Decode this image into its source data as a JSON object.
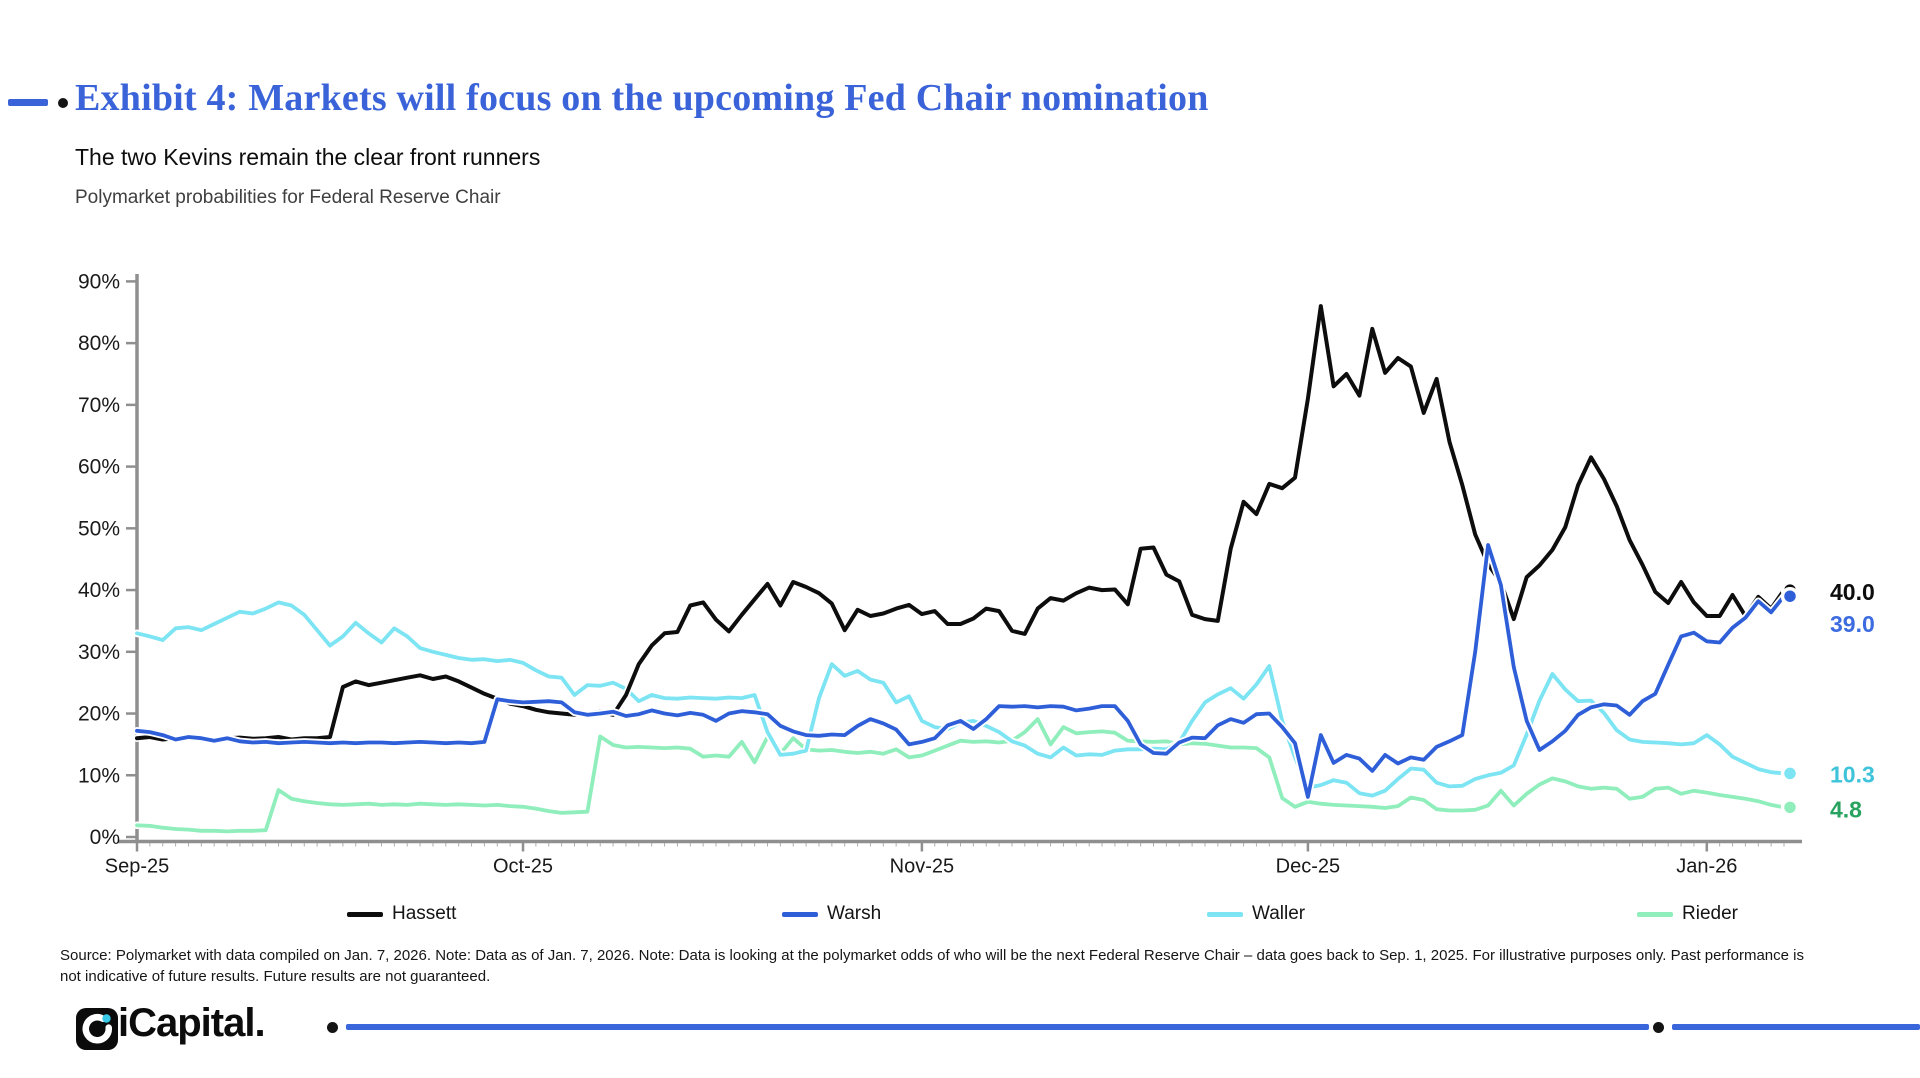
{
  "header": {
    "exhibit_title": "Exhibit 4: Markets will focus on the upcoming Fed Chair nomination",
    "subtitle": "The two Kevins remain the clear front runners",
    "chart_description": "Polymarket probabilities for Federal Reserve Chair",
    "accent_color": "#3a63d9"
  },
  "chart_data": {
    "type": "line",
    "title": "Polymarket probabilities for Federal Reserve Chair",
    "x_unit": "day",
    "x_range_note": "Sep 1, 2025 to Jan 7, 2026, daily",
    "x_tick_labels": [
      "Sep-25",
      "Oct-25",
      "Nov-25",
      "Dec-25",
      "Jan-26"
    ],
    "x_tick_day_index": [
      0,
      30,
      61,
      91,
      122
    ],
    "ylabel": "",
    "ylim": [
      0,
      90
    ],
    "y_tick_labels": [
      "0%",
      "10%",
      "20%",
      "30%",
      "40%",
      "50%",
      "60%",
      "70%",
      "80%",
      "90%"
    ],
    "grid": "off",
    "legend_position": "bottom",
    "axis_color": "#8f8f8f",
    "tick_label_color": "#1a1a1a",
    "series": [
      {
        "name": "Rieder",
        "color": "#8feebb",
        "label_color": "#27a35f",
        "end_label": "4.8",
        "values": [
          1.9,
          1.8,
          1.5,
          1.3,
          1.2,
          1.0,
          1.0,
          0.9,
          1.0,
          1.0,
          1.1,
          7.6,
          6.2,
          5.8,
          5.5,
          5.3,
          5.2,
          5.3,
          5.4,
          5.2,
          5.3,
          5.2,
          5.4,
          5.3,
          5.2,
          5.3,
          5.2,
          5.1,
          5.2,
          5.0,
          4.9,
          4.6,
          4.2,
          3.9,
          4.0,
          4.1,
          16.3,
          14.9,
          14.5,
          14.6,
          14.5,
          14.4,
          14.5,
          14.3,
          13.0,
          13.2,
          13.0,
          15.4,
          12.1,
          16.2,
          13.5,
          16.0,
          14.2,
          14.0,
          14.1,
          13.8,
          13.6,
          13.8,
          13.5,
          14.2,
          12.9,
          13.2,
          14.0,
          14.8,
          15.6,
          15.4,
          15.5,
          15.3,
          15.6,
          17.0,
          19.1,
          15.0,
          17.8,
          16.8,
          17.0,
          17.1,
          16.9,
          15.6,
          15.5,
          15.4,
          15.5,
          15.0,
          15.2,
          15.1,
          14.8,
          14.5,
          14.5,
          14.4,
          12.9,
          6.3,
          4.9,
          5.7,
          5.4,
          5.2,
          5.1,
          5.0,
          4.9,
          4.7,
          5.0,
          6.4,
          6.0,
          4.5,
          4.3,
          4.3,
          4.4,
          5.1,
          7.5,
          5.1,
          7.0,
          8.5,
          9.5,
          9.0,
          8.2,
          7.8,
          8.0,
          7.8,
          6.2,
          6.5,
          7.8,
          8.0,
          7.0,
          7.5,
          7.2,
          6.8,
          6.5,
          6.2,
          5.8,
          5.2,
          4.8
        ]
      },
      {
        "name": "Waller",
        "color": "#7ce4f2",
        "label_color": "#3fc3da",
        "end_label": "10.3",
        "values": [
          33.0,
          32.5,
          31.9,
          33.8,
          34.0,
          33.5,
          34.5,
          35.5,
          36.5,
          36.2,
          37.0,
          38.0,
          37.5,
          36.0,
          33.5,
          31.0,
          32.5,
          34.7,
          33.0,
          31.5,
          33.8,
          32.5,
          30.6,
          30.0,
          29.5,
          29.0,
          28.7,
          28.8,
          28.5,
          28.7,
          28.2,
          27.0,
          26.0,
          25.8,
          23.0,
          24.6,
          24.5,
          25.0,
          24.0,
          22.0,
          23.0,
          22.5,
          22.4,
          22.6,
          22.5,
          22.4,
          22.6,
          22.5,
          23.0,
          17.0,
          13.3,
          13.5,
          14.0,
          22.5,
          28.0,
          26.1,
          26.9,
          25.5,
          25.0,
          21.8,
          22.8,
          18.8,
          17.8,
          17.5,
          18.5,
          18.8,
          18.0,
          17.0,
          15.5,
          14.8,
          13.5,
          12.9,
          14.5,
          13.2,
          13.4,
          13.3,
          14.0,
          14.2,
          14.2,
          14.3,
          14.2,
          15.3,
          18.8,
          21.8,
          23.1,
          24.1,
          22.4,
          24.7,
          27.7,
          18.8,
          12.9,
          8.0,
          8.4,
          9.2,
          8.8,
          7.1,
          6.7,
          7.5,
          9.4,
          11.1,
          10.9,
          8.8,
          8.2,
          8.3,
          9.4,
          10.0,
          10.4,
          11.6,
          16.6,
          22.1,
          26.4,
          23.9,
          22.0,
          22.1,
          20.1,
          17.3,
          15.8,
          15.4,
          15.3,
          15.2,
          15.0,
          15.2,
          16.5,
          15.0,
          13.0,
          12.0,
          11.0,
          10.5,
          10.3
        ]
      },
      {
        "name": "Hassett",
        "color": "#0d0d0d",
        "label_color": "#0d0d0d",
        "end_label": "40.0",
        "values": [
          16.0,
          16.2,
          15.8,
          16.0,
          16.3,
          16.0,
          15.8,
          16.0,
          16.1,
          15.9,
          16.0,
          16.2,
          15.8,
          16.0,
          16.0,
          16.2,
          24.3,
          25.2,
          24.6,
          25.0,
          25.4,
          25.8,
          26.2,
          25.6,
          26.0,
          25.2,
          24.2,
          23.2,
          22.4,
          21.6,
          21.2,
          20.6,
          20.2,
          20.0,
          19.8,
          20.0,
          20.3,
          19.8,
          23.0,
          28.0,
          31.0,
          33.0,
          33.2,
          37.5,
          38.0,
          35.2,
          33.3,
          36.0,
          38.5,
          41.0,
          37.5,
          41.3,
          40.5,
          39.5,
          37.8,
          33.5,
          36.8,
          35.8,
          36.2,
          37.0,
          37.6,
          36.1,
          36.6,
          34.5,
          34.5,
          35.4,
          37.0,
          36.6,
          33.4,
          32.9,
          37.0,
          38.7,
          38.3,
          39.5,
          40.4,
          40.0,
          40.1,
          37.7,
          46.7,
          46.9,
          42.5,
          41.4,
          36.0,
          35.3,
          35.0,
          46.7,
          54.3,
          52.3,
          57.2,
          56.5,
          58.2,
          71.0,
          86.0,
          73.0,
          75.0,
          71.5,
          82.3,
          75.2,
          77.6,
          76.2,
          68.7,
          74.2,
          64.0,
          57.0,
          49.0,
          44.2,
          41.2,
          35.3,
          42.1,
          44.0,
          46.5,
          50.2,
          57.0,
          61.5,
          58.0,
          53.6,
          48.1,
          44.1,
          39.7,
          37.9,
          41.3,
          38.0,
          35.8,
          35.8,
          39.2,
          35.8,
          38.9,
          37.0,
          40.0
        ]
      },
      {
        "name": "Warsh",
        "color": "#2e5fd9",
        "label_color": "#3c6ce0",
        "end_label": "39.0",
        "values": [
          17.2,
          17.0,
          16.5,
          15.8,
          16.2,
          16.0,
          15.6,
          16.0,
          15.5,
          15.3,
          15.4,
          15.2,
          15.3,
          15.4,
          15.3,
          15.2,
          15.3,
          15.2,
          15.3,
          15.3,
          15.2,
          15.3,
          15.4,
          15.3,
          15.2,
          15.3,
          15.2,
          15.4,
          22.3,
          22.0,
          21.8,
          21.9,
          22.0,
          21.8,
          20.2,
          19.8,
          20.0,
          20.3,
          19.6,
          19.9,
          20.5,
          20.0,
          19.7,
          20.1,
          19.8,
          18.8,
          20.0,
          20.4,
          20.2,
          19.9,
          18.0,
          17.1,
          16.5,
          16.4,
          16.6,
          16.5,
          18.0,
          19.1,
          18.4,
          17.4,
          15.0,
          15.4,
          16.0,
          18.1,
          18.8,
          17.5,
          19.1,
          21.2,
          21.1,
          21.2,
          21.0,
          21.2,
          21.1,
          20.5,
          20.8,
          21.2,
          21.2,
          18.8,
          15.0,
          13.6,
          13.5,
          15.3,
          16.1,
          16.0,
          18.1,
          19.1,
          18.5,
          19.9,
          20.0,
          17.8,
          15.2,
          6.5,
          16.5,
          12.0,
          13.3,
          12.7,
          10.7,
          13.3,
          11.9,
          12.9,
          12.5,
          14.6,
          15.5,
          16.5,
          30.0,
          47.3,
          40.8,
          27.5,
          18.8,
          14.1,
          15.5,
          17.2,
          19.8,
          21.0,
          21.5,
          21.3,
          19.8,
          22.0,
          23.2,
          27.9,
          32.5,
          33.1,
          31.7,
          31.5,
          33.9,
          35.5,
          38.2,
          36.4,
          39.0
        ]
      }
    ]
  },
  "legend": {
    "entries": [
      {
        "label": "Hassett",
        "color": "#0d0d0d"
      },
      {
        "label": "Warsh",
        "color": "#2e5fd9"
      },
      {
        "label": "Waller",
        "color": "#7ce4f2"
      },
      {
        "label": "Rieder",
        "color": "#8feebb"
      }
    ]
  },
  "footer": {
    "lines": [
      "Source: Polymarket with data compiled on Jan. 7, 2026. Note: Data as of Jan. 7, 2026. Note: Data is looking at the polymarket odds of who will be the next Federal Reserve Chair – data goes back to Sep. 1, 2025. For illustrative purposes only. Past performance is",
      "not indicative of future results. Future results are not guaranteed."
    ]
  },
  "branding": {
    "logo_text": "iCapital.",
    "logo_dot_color": "#39c9e8",
    "bottom_line_color": "#3a66db"
  }
}
